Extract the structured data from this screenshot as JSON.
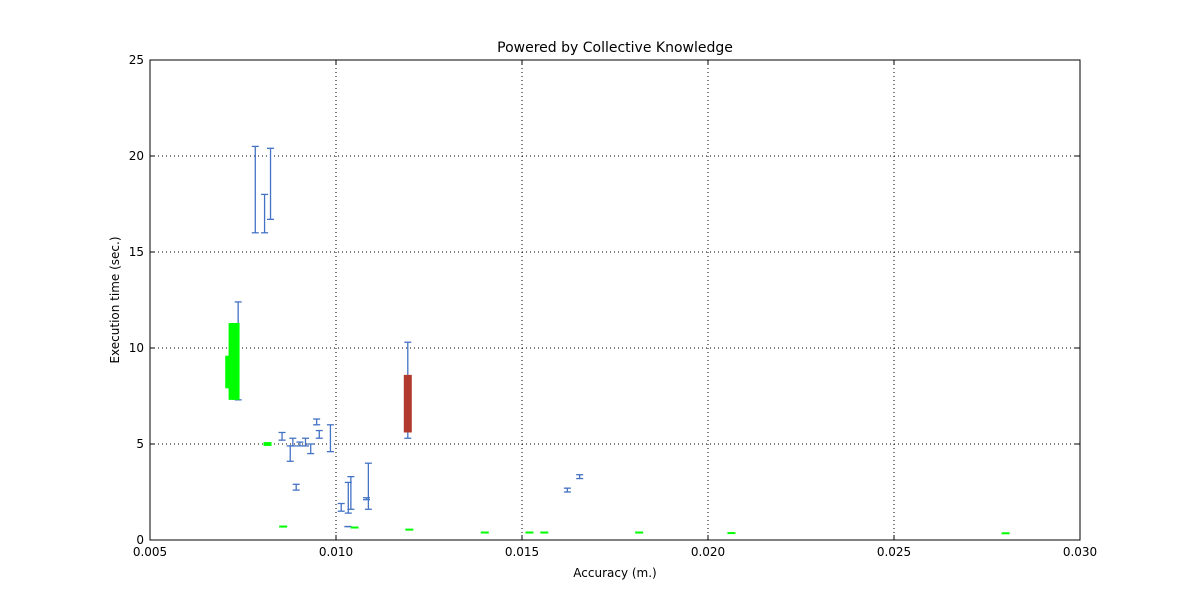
{
  "chart_data": {
    "type": "scatter",
    "title": "Powered by Collective Knowledge",
    "xlabel": "Accuracy (m.)",
    "ylabel": "Execution time (sec.)",
    "xlim": [
      0.005,
      0.03
    ],
    "ylim": [
      0,
      25
    ],
    "xticks": [
      "0.005",
      "0.010",
      "0.015",
      "0.020",
      "0.025",
      "0.030"
    ],
    "yticks": [
      "0",
      "5",
      "10",
      "15",
      "20",
      "25"
    ],
    "grid": true,
    "colors": {
      "blue": "#4472c4",
      "green": "#00ff00",
      "red": "#b03a2e"
    },
    "series": [
      {
        "kind": "errorbar",
        "color": "#4472c4",
        "points": [
          {
            "x": 0.00783,
            "low": 16.0,
            "high": 20.5
          },
          {
            "x": 0.00808,
            "low": 16.0,
            "high": 18.0
          },
          {
            "x": 0.00824,
            "low": 16.7,
            "high": 20.4
          },
          {
            "x": 0.00737,
            "low": 7.3,
            "high": 12.4
          },
          {
            "x": 0.01193,
            "low": 5.3,
            "high": 10.3
          },
          {
            "x": 0.00855,
            "low": 5.2,
            "high": 5.6
          },
          {
            "x": 0.00877,
            "low": 4.1,
            "high": 4.9
          },
          {
            "x": 0.00884,
            "low": 4.9,
            "high": 5.3
          },
          {
            "x": 0.00903,
            "low": 4.9,
            "high": 5.1
          },
          {
            "x": 0.00918,
            "low": 4.9,
            "high": 5.3
          },
          {
            "x": 0.00932,
            "low": 4.5,
            "high": 5.0
          },
          {
            "x": 0.00948,
            "low": 6.0,
            "high": 6.3
          },
          {
            "x": 0.00955,
            "low": 5.3,
            "high": 5.7
          },
          {
            "x": 0.00985,
            "low": 4.6,
            "high": 6.0
          },
          {
            "x": 0.00893,
            "low": 2.6,
            "high": 2.9
          },
          {
            "x": 0.01014,
            "low": 1.5,
            "high": 1.9
          },
          {
            "x": 0.01033,
            "low": 1.4,
            "high": 3.0
          },
          {
            "x": 0.0104,
            "low": 1.6,
            "high": 3.3
          },
          {
            "x": 0.01032,
            "low": 0.7,
            "high": 0.7
          },
          {
            "x": 0.01087,
            "low": 1.6,
            "high": 4.0
          },
          {
            "x": 0.01082,
            "low": 2.1,
            "high": 2.2
          },
          {
            "x": 0.01622,
            "low": 2.5,
            "high": 2.7
          },
          {
            "x": 0.01655,
            "low": 3.2,
            "high": 3.4
          }
        ]
      },
      {
        "kind": "range",
        "color": "#00ff00",
        "points": [
          {
            "x": 0.00713,
            "low": 7.9,
            "high": 9.6
          },
          {
            "x": 0.00722,
            "low": 7.3,
            "high": 11.3
          },
          {
            "x": 0.0073,
            "low": 7.3,
            "high": 11.3
          },
          {
            "x": 0.00816,
            "low": 4.9,
            "high": 5.1
          },
          {
            "x": 0.00858,
            "low": 0.68,
            "high": 0.72
          },
          {
            "x": 0.0105,
            "low": 0.63,
            "high": 0.67
          },
          {
            "x": 0.01197,
            "low": 0.5,
            "high": 0.58
          },
          {
            "x": 0.014,
            "low": 0.37,
            "high": 0.41
          },
          {
            "x": 0.0152,
            "low": 0.37,
            "high": 0.41
          },
          {
            "x": 0.0156,
            "low": 0.37,
            "high": 0.41
          },
          {
            "x": 0.01815,
            "low": 0.37,
            "high": 0.41
          },
          {
            "x": 0.02063,
            "low": 0.34,
            "high": 0.38
          },
          {
            "x": 0.028,
            "low": 0.33,
            "high": 0.37
          }
        ]
      },
      {
        "kind": "range",
        "color": "#b03a2e",
        "points": [
          {
            "x": 0.01193,
            "low": 5.6,
            "high": 8.6
          }
        ]
      }
    ]
  }
}
